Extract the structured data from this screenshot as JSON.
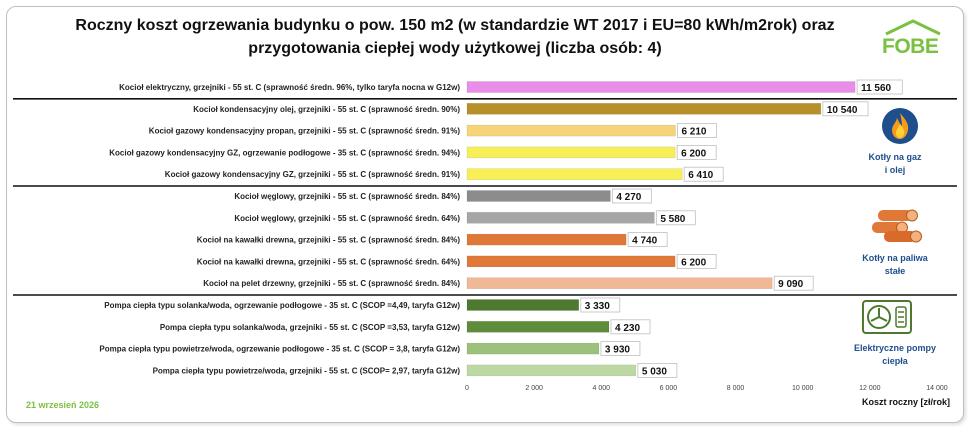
{
  "chart_data": {
    "type": "bar",
    "orientation": "horizontal",
    "title_line1": "Roczny koszt ogrzewania budynku o pow. 150 m2 (w standardzie WT 2017 i EU=80 kWh/m2rok) oraz",
    "title_line2": "przygotowania ciepłej wody użytkowej (liczba osób: 4)",
    "xlabel": "Koszt roczny [zł/rok]",
    "xlim": [
      0,
      14000
    ],
    "xticks": [
      "0",
      "2 000",
      "4 000",
      "6 000",
      "8 000",
      "10 000",
      "12 000",
      "14 000"
    ],
    "grid": false,
    "categories": [
      "Kocioł  elektryczny,  grzejniki - 55 st. C  (sprawność średn. 96%, tylko taryfa nocna w G12w)",
      "Kocioł  kondensacyjny olej,  grzejniki - 55 st. C (sprawność średn. 90%)",
      "Kocioł gazowy kondensacyjny propan, grzejniki - 55 st. C (sprawność średn. 91%)",
      "Kocioł gazowy kondensacyjny GZ, ogrzewanie podłogowe - 35 st. C (sprawność średn. 94%)",
      "Kocioł gazowy kondensacyjny GZ, grzejniki - 55 st. C (sprawność średn. 91%)",
      "Kocioł węglowy,  grzejniki - 55 st. C (sprawność średn. 84%)",
      "Kocioł węglowy,  grzejniki - 55 st. C (sprawność średn. 64%)",
      "Kocioł na kawałki drewna, grzejniki - 55 st. C (sprawność średn. 84%)",
      "Kocioł na kawałki drewna, grzejniki - 55 st. C (sprawność średn. 64%)",
      "Kocioł na pelet drzewny, grzejniki - 55 st. C (sprawność średn. 84%)",
      "Pompa ciepła typu solanka/woda, ogrzewanie podłogowe - 35 st. C (SCOP =4,49, taryfa G12w)",
      "Pompa ciepła typu solanka/woda, grzejniki - 55 st. C (SCOP =3,53, taryfa G12w)",
      "Pompa ciepła typu powietrze/woda, ogrzewanie podłogowe - 35 st. C (SCOP = 3,8, taryfa G12w)",
      "Pompa ciepła typu powietrze/woda, grzejniki - 55 st. C (SCOP= 2,97, taryfa G12w)"
    ],
    "values": [
      11560,
      10540,
      6210,
      6200,
      6410,
      4270,
      5580,
      4740,
      6200,
      9090,
      3330,
      4230,
      3930,
      5030
    ],
    "value_labels": [
      "11 560",
      "10 540",
      "6 210",
      "6 200",
      "6 410",
      "4 270",
      "5 580",
      "4 740",
      "6 200",
      "9 090",
      "3 330",
      "4 230",
      "3 930",
      "5 030"
    ],
    "colors": [
      "#e88ee8",
      "#b8902a",
      "#f7d37a",
      "#f7ef55",
      "#f7ef55",
      "#8c8c8c",
      "#a6a6a6",
      "#e07838",
      "#e07838",
      "#f0b894",
      "#4d7a2e",
      "#5e8c3a",
      "#9dc07a",
      "#bcd9a4"
    ],
    "groups": [
      {
        "label": "",
        "rows": [
          0
        ]
      },
      {
        "label_lines": [
          "Kotły na gaz",
          "i olej"
        ],
        "rows": [
          1,
          2,
          3,
          4
        ],
        "icon": "flame-icon"
      },
      {
        "label_lines": [
          "Kotły na paliwa",
          "stałe"
        ],
        "rows": [
          5,
          6,
          7,
          8,
          9
        ],
        "icon": "wood-logs-icon"
      },
      {
        "label_lines": [
          "Elektryczne pompy",
          "ciepła"
        ],
        "rows": [
          10,
          11,
          12,
          13
        ],
        "icon": "heat-pump-icon"
      }
    ]
  },
  "logo_text": "FOBE",
  "date_text": "21 wrzesień 2026",
  "accent_color": "#7ac142",
  "group_label_color": "#1f4e8c"
}
